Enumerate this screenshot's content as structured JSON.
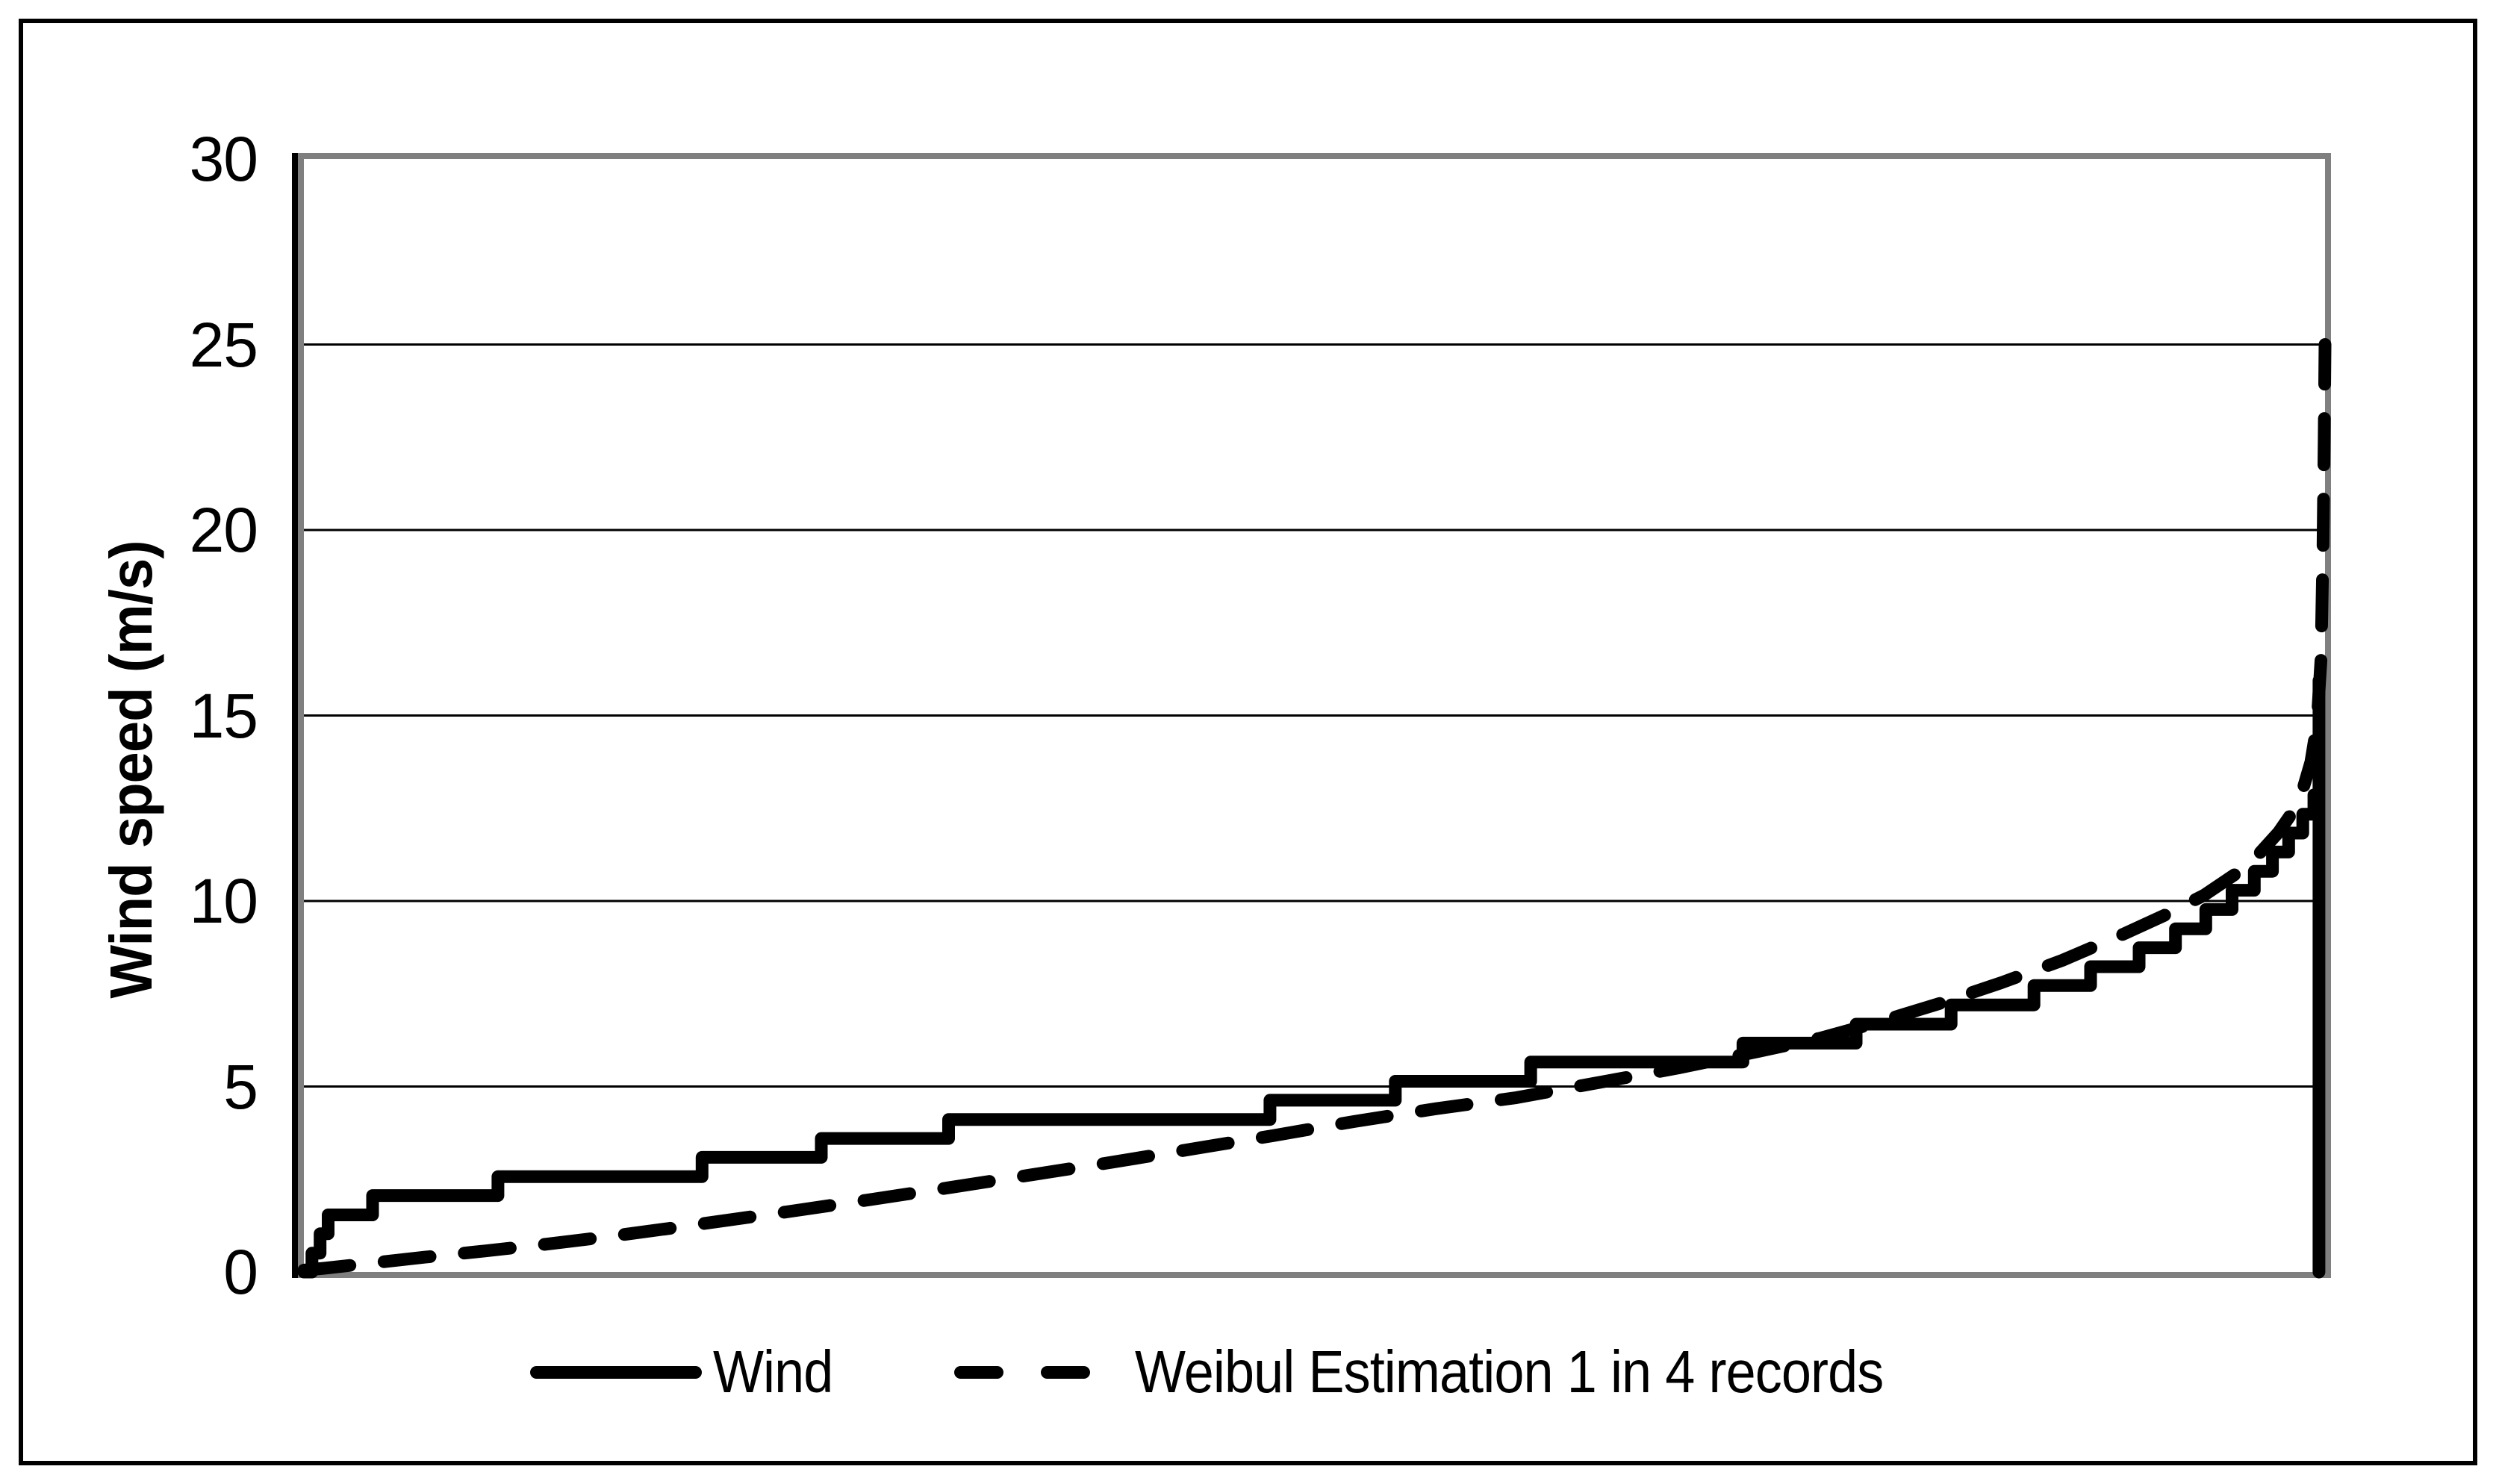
{
  "figure": {
    "background_color": "#ffffff",
    "border_color": "#000000",
    "plot_border_color": "#7f7f7f",
    "series_color": "#000000"
  },
  "y_axis": {
    "title": "Wind speed (m/s)",
    "tick_labels": [
      "0",
      "5",
      "10",
      "15",
      "20",
      "25",
      "30"
    ],
    "range": [
      0,
      30
    ]
  },
  "x_axis": {
    "tick_labels": [],
    "note": "no visible tick labels or axis title"
  },
  "legend": {
    "position": "bottom-center",
    "items": [
      {
        "label": "Wind",
        "line_style": "solid"
      },
      {
        "label": "Weibul Estimation 1 in 4 records",
        "line_style": "dashed"
      }
    ]
  },
  "chart_data": {
    "type": "line",
    "title": "",
    "xlabel": "",
    "ylabel": "Wind speed (m/s)",
    "ylim": [
      0,
      30
    ],
    "yticks": [
      0,
      5,
      10,
      15,
      20,
      25,
      30
    ],
    "grid": "horizontal",
    "legend_position": "bottom",
    "x_unit": "sorted record position, fraction 0-1 (axis unlabeled)",
    "y_unit": "m/s",
    "series": [
      {
        "name": "Wind",
        "style": "solid",
        "shape": "step",
        "points": [
          [
            0.0,
            0.0
          ],
          [
            0.004,
            0.0
          ],
          [
            0.004,
            0.51
          ],
          [
            0.008,
            0.51
          ],
          [
            0.008,
            1.03
          ],
          [
            0.012,
            1.03
          ],
          [
            0.012,
            1.54
          ],
          [
            0.034,
            1.54
          ],
          [
            0.034,
            2.06
          ],
          [
            0.096,
            2.06
          ],
          [
            0.096,
            2.57
          ],
          [
            0.197,
            2.57
          ],
          [
            0.197,
            3.09
          ],
          [
            0.256,
            3.09
          ],
          [
            0.256,
            3.6
          ],
          [
            0.319,
            3.6
          ],
          [
            0.319,
            4.11
          ],
          [
            0.478,
            4.11
          ],
          [
            0.478,
            4.63
          ],
          [
            0.54,
            4.63
          ],
          [
            0.54,
            5.14
          ],
          [
            0.607,
            5.14
          ],
          [
            0.607,
            5.66
          ],
          [
            0.712,
            5.66
          ],
          [
            0.712,
            6.17
          ],
          [
            0.768,
            6.17
          ],
          [
            0.768,
            6.68
          ],
          [
            0.815,
            6.68
          ],
          [
            0.815,
            7.2
          ],
          [
            0.856,
            7.2
          ],
          [
            0.856,
            7.72
          ],
          [
            0.884,
            7.72
          ],
          [
            0.884,
            8.23
          ],
          [
            0.908,
            8.23
          ],
          [
            0.908,
            8.74
          ],
          [
            0.926,
            8.74
          ],
          [
            0.926,
            9.25
          ],
          [
            0.941,
            9.25
          ],
          [
            0.941,
            9.77
          ],
          [
            0.954,
            9.77
          ],
          [
            0.954,
            10.29
          ],
          [
            0.965,
            10.29
          ],
          [
            0.965,
            10.8
          ],
          [
            0.974,
            10.8
          ],
          [
            0.974,
            11.32
          ],
          [
            0.982,
            11.32
          ],
          [
            0.982,
            11.83
          ],
          [
            0.989,
            11.83
          ],
          [
            0.989,
            12.34
          ],
          [
            0.9945,
            12.34
          ],
          [
            0.9945,
            12.86
          ],
          [
            0.997,
            12.86
          ],
          [
            0.997,
            15.94
          ],
          [
            0.997,
            0.0
          ]
        ]
      },
      {
        "name": "Weibul Estimation 1 in 4 records",
        "style": "dashed",
        "shape": "smooth",
        "points": [
          [
            0.0,
            0.05
          ],
          [
            0.01,
            0.1
          ],
          [
            0.03,
            0.22
          ],
          [
            0.06,
            0.4
          ],
          [
            0.09,
            0.57
          ],
          [
            0.12,
            0.75
          ],
          [
            0.15,
            0.95
          ],
          [
            0.18,
            1.17
          ],
          [
            0.21,
            1.4
          ],
          [
            0.24,
            1.63
          ],
          [
            0.28,
            1.95
          ],
          [
            0.32,
            2.28
          ],
          [
            0.36,
            2.62
          ],
          [
            0.4,
            2.96
          ],
          [
            0.44,
            3.32
          ],
          [
            0.48,
            3.68
          ],
          [
            0.52,
            4.06
          ],
          [
            0.56,
            4.4
          ],
          [
            0.6,
            4.7
          ],
          [
            0.64,
            5.1
          ],
          [
            0.68,
            5.5
          ],
          [
            0.72,
            5.95
          ],
          [
            0.75,
            6.3
          ],
          [
            0.78,
            6.75
          ],
          [
            0.81,
            7.25
          ],
          [
            0.84,
            7.8
          ],
          [
            0.87,
            8.4
          ],
          [
            0.9,
            9.1
          ],
          [
            0.92,
            9.6
          ],
          [
            0.94,
            10.15
          ],
          [
            0.955,
            10.7
          ],
          [
            0.967,
            11.25
          ],
          [
            0.977,
            11.85
          ],
          [
            0.984,
            12.4
          ],
          [
            0.989,
            13.0
          ],
          [
            0.993,
            13.75
          ],
          [
            0.996,
            14.75
          ],
          [
            0.998,
            16.5
          ],
          [
            0.999,
            19.5
          ],
          [
            0.9996,
            22.5
          ],
          [
            1.0,
            25.0
          ]
        ]
      }
    ]
  }
}
